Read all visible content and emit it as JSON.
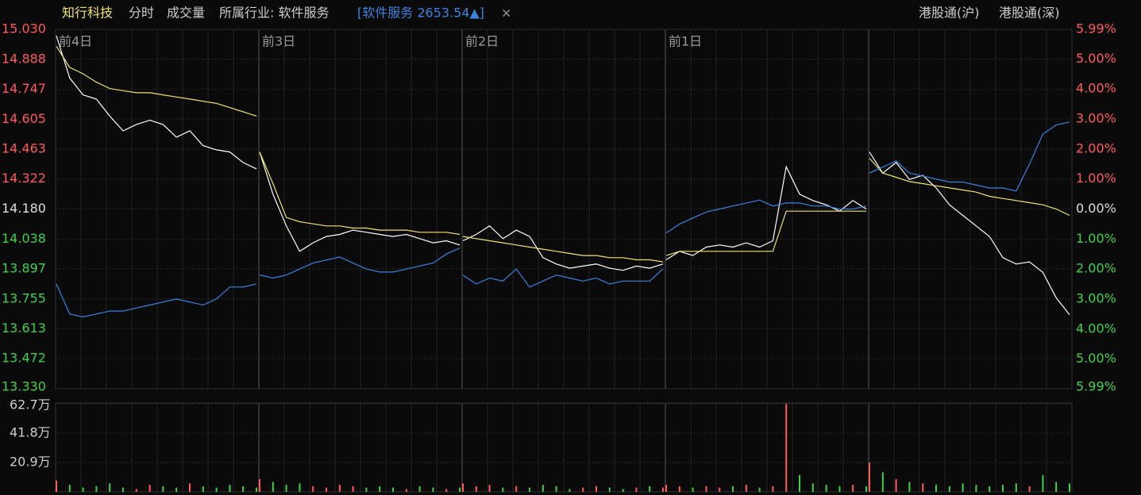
{
  "header": {
    "stock": "知行科技",
    "tabs": [
      "分时",
      "成交量"
    ],
    "industry": "所属行业: 软件服务",
    "index": "[软件服务 2653.54▲]",
    "close": "×",
    "links": [
      "港股通(沪)",
      "港股通(深)"
    ]
  },
  "chart_data": {
    "type": "line",
    "days": [
      "前4日",
      "前3日",
      "前2日",
      "前1日",
      null
    ],
    "points_per_day": 16,
    "ylim": [
      13.33,
      15.03
    ],
    "yticks": [
      {
        "value": 15.03,
        "label": "15.030"
      },
      14.888,
      14.747,
      14.605,
      14.463,
      14.322,
      {
        "value": 14.18,
        "label": "14.180"
      },
      14.038,
      13.897,
      13.755,
      13.613,
      13.472,
      {
        "value": 13.33,
        "label": "13.330"
      }
    ],
    "y2lim": [
      -5.99,
      5.99
    ],
    "y2ticks": [
      {
        "value": 5.99,
        "label": "5.99%"
      },
      {
        "value": 5,
        "label": "5.00%"
      },
      {
        "value": 4,
        "label": "4.00%"
      },
      {
        "value": 3,
        "label": "3.00%"
      },
      {
        "value": 2,
        "label": "2.00%"
      },
      {
        "value": 1,
        "label": "1.00%"
      },
      {
        "value": 0,
        "label": "0.00%"
      },
      {
        "value": -1,
        "label": "1.00%"
      },
      {
        "value": -2,
        "label": "2.00%"
      },
      {
        "value": -3,
        "label": "3.00%"
      },
      {
        "value": -4,
        "label": "4.00%"
      },
      {
        "value": -5,
        "label": "5.00%"
      },
      {
        "value": -5.99,
        "label": "5.99%"
      }
    ],
    "up_color": "#ff5b5b",
    "down_color": "#3fd14a",
    "flat_color": "#dddddd",
    "grid": true,
    "series": [
      {
        "name": "价格",
        "color": "#ffffff",
        "values": [
          15.0,
          14.8,
          14.72,
          14.7,
          14.62,
          14.55,
          14.58,
          14.6,
          14.58,
          14.52,
          14.55,
          14.48,
          14.46,
          14.45,
          14.4,
          14.37,
          14.45,
          14.25,
          14.1,
          13.98,
          14.02,
          14.05,
          14.06,
          14.08,
          14.07,
          14.06,
          14.05,
          14.06,
          14.04,
          14.02,
          14.03,
          14.01,
          14.03,
          14.06,
          14.1,
          14.04,
          14.08,
          14.05,
          13.95,
          13.92,
          13.9,
          13.91,
          13.92,
          13.9,
          13.89,
          13.91,
          13.9,
          13.92,
          13.94,
          13.98,
          13.96,
          14.0,
          14.01,
          14.0,
          14.02,
          14.0,
          14.03,
          14.38,
          14.25,
          14.22,
          14.2,
          14.17,
          14.22,
          14.18,
          14.45,
          14.35,
          14.4,
          14.32,
          14.34,
          14.28,
          14.2,
          14.15,
          14.1,
          14.05,
          13.95,
          13.92,
          13.93,
          13.88,
          13.76,
          13.68
        ]
      },
      {
        "name": "均价",
        "color": "#f0e36a",
        "values": [
          14.95,
          14.85,
          14.82,
          14.78,
          14.75,
          14.74,
          14.73,
          14.73,
          14.72,
          14.71,
          14.7,
          14.69,
          14.68,
          14.66,
          14.64,
          14.62,
          14.45,
          14.3,
          14.14,
          14.12,
          14.11,
          14.1,
          14.1,
          14.09,
          14.09,
          14.08,
          14.08,
          14.08,
          14.07,
          14.07,
          14.07,
          14.06,
          14.05,
          14.04,
          14.03,
          14.02,
          14.01,
          14.0,
          13.99,
          13.98,
          13.97,
          13.96,
          13.96,
          13.95,
          13.95,
          13.94,
          13.94,
          13.93,
          13.96,
          13.98,
          13.98,
          13.98,
          13.98,
          13.98,
          13.98,
          13.98,
          13.98,
          14.17,
          14.17,
          14.17,
          14.17,
          14.17,
          14.17,
          14.17,
          14.42,
          14.35,
          14.33,
          14.31,
          14.3,
          14.29,
          14.28,
          14.27,
          14.26,
          14.24,
          14.23,
          14.22,
          14.21,
          14.2,
          14.18,
          14.15
        ]
      },
      {
        "name": "软件服务",
        "color": "#3b82e0",
        "axis": "y2",
        "values": [
          -2.5,
          -3.5,
          -3.6,
          -3.5,
          -3.4,
          -3.4,
          -3.3,
          -3.2,
          -3.1,
          -3.0,
          -3.1,
          -3.2,
          -3.0,
          -2.6,
          -2.6,
          -2.5,
          -2.2,
          -2.3,
          -2.2,
          -2.0,
          -1.8,
          -1.7,
          -1.6,
          -1.8,
          -2.0,
          -2.1,
          -2.1,
          -2.0,
          -1.9,
          -1.8,
          -1.5,
          -1.3,
          -2.2,
          -2.5,
          -2.3,
          -2.4,
          -2.0,
          -2.6,
          -2.4,
          -2.2,
          -2.3,
          -2.4,
          -2.3,
          -2.5,
          -2.4,
          -2.4,
          -2.4,
          -2.0,
          -0.8,
          -0.5,
          -0.3,
          -0.1,
          0.0,
          0.1,
          0.2,
          0.3,
          0.1,
          0.2,
          0.2,
          0.1,
          0.1,
          0.0,
          0.0,
          0.1,
          1.2,
          1.4,
          1.6,
          1.2,
          1.1,
          1.0,
          0.9,
          0.9,
          0.8,
          0.7,
          0.7,
          0.6,
          1.5,
          2.5,
          2.8,
          2.9
        ]
      }
    ],
    "volume": {
      "ylim": [
        0,
        62.7
      ],
      "yticks": [
        {
          "value": 62.7,
          "label": "62.7万"
        },
        {
          "value": 41.8,
          "label": "41.8万"
        },
        {
          "value": 20.9,
          "label": "20.9万"
        }
      ],
      "values": [
        8,
        5,
        3,
        4,
        6,
        3,
        2,
        5,
        4,
        3,
        6,
        4,
        3,
        5,
        4,
        3,
        9,
        7,
        5,
        6,
        4,
        3,
        5,
        4,
        3,
        4,
        3,
        2,
        4,
        3,
        2,
        3,
        6,
        4,
        5,
        3,
        4,
        3,
        5,
        4,
        2,
        3,
        4,
        3,
        2,
        3,
        4,
        3,
        5,
        4,
        3,
        4,
        3,
        4,
        5,
        3,
        4,
        62.7,
        12,
        6,
        5,
        4,
        5,
        4,
        20.9,
        14,
        9,
        7,
        6,
        5,
        4,
        6,
        5,
        4,
        5,
        6,
        4,
        12,
        7,
        6
      ]
    }
  }
}
